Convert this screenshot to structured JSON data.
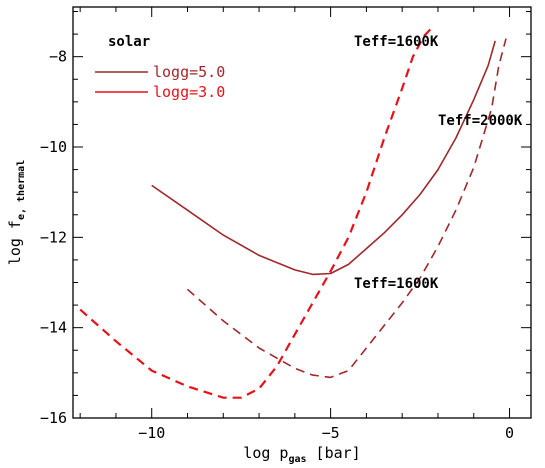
{
  "chart_data": {
    "type": "line",
    "xlabel": {
      "main": "log p",
      "sub": "gas",
      "unit": " [bar]"
    },
    "ylabel": {
      "main": "log f",
      "sub": "e, thermal"
    },
    "xlim": [
      -12.2,
      0.6
    ],
    "ylim": [
      -16,
      -6.9
    ],
    "xticks": [
      -10,
      -5,
      0
    ],
    "yticks": [
      -16,
      -14,
      -12,
      -10,
      -8
    ],
    "xtick_labels": [
      "−10",
      "−5",
      "0"
    ],
    "ytick_labels": [
      "−16",
      "−14",
      "−12",
      "−10",
      "−8"
    ],
    "grid": false,
    "legend": {
      "placement": "top-left",
      "heading": "solar",
      "entries": [
        {
          "label": "logg=5.0",
          "color": "#a0282c"
        },
        {
          "label": "logg=3.0",
          "color": "#e8111a"
        }
      ]
    },
    "annotations": [
      "Teff=1600K",
      "Teff=2000K",
      "Teff=1600K"
    ],
    "series": [
      {
        "name": "logg=5.0",
        "color": "#a0282c",
        "dash": "solid",
        "x": [
          -10.0,
          -9.0,
          -8.0,
          -7.0,
          -6.0,
          -5.5,
          -5.0,
          -4.5,
          -4.0,
          -3.5,
          -3.0,
          -2.5,
          -2.0,
          -1.5,
          -1.0,
          -0.6,
          -0.4
        ],
        "y": [
          -10.85,
          -11.4,
          -11.95,
          -12.4,
          -12.72,
          -12.82,
          -12.8,
          -12.6,
          -12.25,
          -11.9,
          -11.5,
          -11.05,
          -10.5,
          -9.8,
          -8.95,
          -8.2,
          -7.65
        ]
      },
      {
        "name": "logg=5.0",
        "color": "#a0282c",
        "dash": "dashed",
        "x": [
          -9.0,
          -8.0,
          -7.0,
          -6.0,
          -5.5,
          -5.0,
          -4.5,
          -4.0,
          -3.5,
          -3.0,
          -2.5,
          -2.0,
          -1.5,
          -1.0,
          -0.5,
          -0.3,
          -0.1
        ],
        "y": [
          -13.15,
          -13.85,
          -14.45,
          -14.9,
          -15.05,
          -15.1,
          -14.95,
          -14.45,
          -13.95,
          -13.45,
          -12.9,
          -12.2,
          -11.4,
          -10.45,
          -9.15,
          -8.2,
          -7.6
        ]
      },
      {
        "name": "logg=3.0",
        "color": "#e8111a",
        "dash": "dashed",
        "x": [
          -12.0,
          -11.0,
          -10.0,
          -9.0,
          -8.0,
          -7.5,
          -7.0,
          -6.5,
          -6.0,
          -5.5,
          -5.0,
          -4.5,
          -4.0,
          -3.5,
          -3.0,
          -2.7,
          -2.4,
          -2.1
        ],
        "y": [
          -13.6,
          -14.3,
          -14.95,
          -15.3,
          -15.55,
          -15.55,
          -15.35,
          -14.85,
          -14.15,
          -13.45,
          -12.75,
          -12.0,
          -11.0,
          -9.8,
          -8.7,
          -8.0,
          -7.55,
          -7.3
        ]
      }
    ]
  }
}
